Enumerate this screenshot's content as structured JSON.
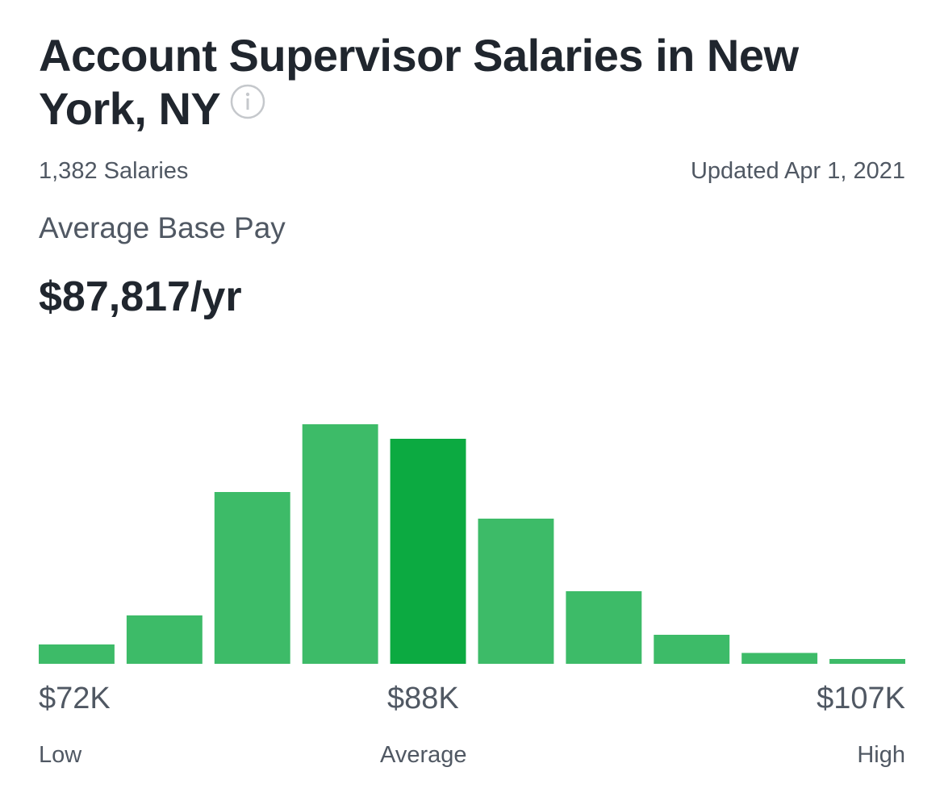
{
  "header": {
    "title": "Account Supervisor Salaries in New York, NY",
    "info_icon": "info-icon"
  },
  "meta": {
    "salaries_count": "1,382 Salaries",
    "updated": "Updated Apr 1, 2021"
  },
  "average": {
    "label": "Average Base Pay",
    "value": "$87,817/yr"
  },
  "colors": {
    "bar": "#3dbb68",
    "bar_highlight": "#0caa41",
    "text_dark": "#20262e",
    "text_muted": "#505863"
  },
  "chart_data": {
    "type": "bar",
    "bars": [
      8,
      20,
      71,
      99,
      93,
      60,
      30,
      12,
      4.5,
      2
    ],
    "highlight_index": 4,
    "ylim": [
      0,
      100
    ],
    "ticks": {
      "low": "$72K",
      "average": "$88K",
      "high": "$107K"
    },
    "captions": {
      "low": "Low",
      "average": "Average",
      "high": "High"
    }
  }
}
